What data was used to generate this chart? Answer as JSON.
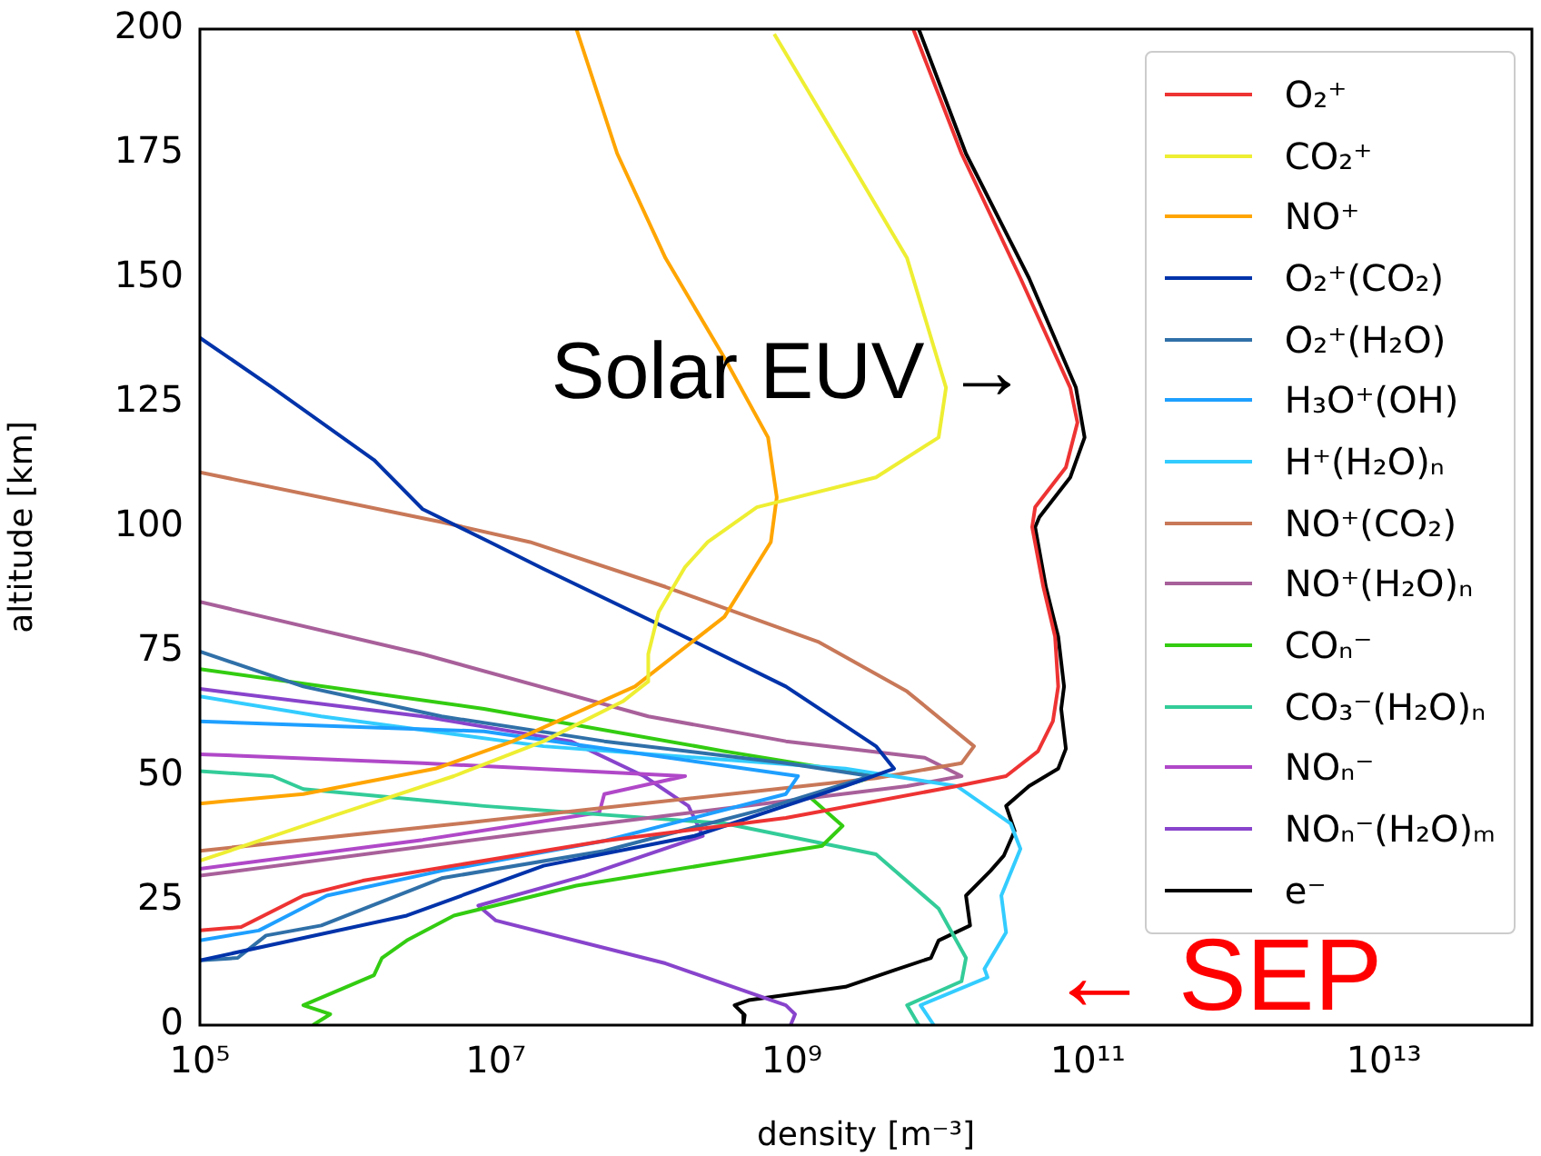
{
  "chart_data": {
    "type": "line",
    "xlabel": "density [m⁻³]",
    "ylabel": "altitude [km]",
    "log": "x",
    "xlim": [
      100000.0,
      100000000000000.0
    ],
    "xticks": [
      {
        "value": 100000.0,
        "label": "10⁵"
      },
      {
        "value": 10000000.0,
        "label": "10⁷"
      },
      {
        "value": 1000000000.0,
        "label": "10⁹"
      },
      {
        "value": 100000000000.0,
        "label": "10¹¹"
      },
      {
        "value": 10000000000000.0,
        "label": "10¹³"
      }
    ],
    "ylim": [
      0,
      200
    ],
    "yticks": [
      0,
      25,
      50,
      75,
      100,
      125,
      150,
      175,
      200
    ],
    "grid": false,
    "legend": "top right",
    "marker": "none",
    "line_style": "solid",
    "annotations": [
      "Solar EUV →",
      "← SEP"
    ],
    "series": [
      {
        "name": "O₂⁺",
        "color": "#ee3333",
        "x": [
          6600000000.0,
          14000000000.0,
          35000000000.0,
          76000000000.0,
          85000000000.0,
          71000000000.0,
          44000000000.0,
          42000000000.0,
          50000000000.0,
          60000000000.0,
          63000000000.0,
          58000000000.0,
          46000000000.0,
          28000000000.0,
          13000000000.0,
          910000000.0,
          54000000.0,
          1260000.0,
          500000.0,
          190000.0,
          100000.0
        ],
        "values": [
          200,
          175,
          150,
          128,
          121,
          112,
          104,
          100,
          88,
          78,
          68,
          61,
          55,
          50,
          48,
          41.6,
          37,
          29,
          26,
          19.7,
          19
        ]
      },
      {
        "name": "CO₂⁺",
        "color": "#eeee33",
        "x": [
          760000000.0,
          2300000000.0,
          6000000000.0,
          11000000000.0,
          9800000000.0,
          3700000000.0,
          580000000.0,
          270000000.0,
          190000000.0,
          126000000.0,
          107000000.0,
          107000000.0,
          72000000.0,
          21000000.0,
          5200000.0,
          790000.0,
          100000.0
        ],
        "values": [
          199,
          175,
          154,
          128,
          118,
          110,
          104,
          97,
          92,
          83,
          74.5,
          69,
          65,
          57,
          50,
          42,
          33
        ]
      },
      {
        "name": "NO⁺",
        "color": "#ffa500",
        "x": [
          35000000.0,
          66000000.0,
          140000000.0,
          350000000.0,
          690000000.0,
          790000000.0,
          720000000.0,
          350000000.0,
          87000000.0,
          13000000.0,
          3900000.0,
          500000.0,
          100000.0
        ],
        "values": [
          200,
          175,
          154,
          134,
          118,
          106,
          97,
          82,
          68,
          57,
          51.5,
          46.4,
          44.5
        ]
      },
      {
        "name": "O₂⁺(CO₂)",
        "color": "#0033aa",
        "x": [
          100000.0,
          310000.0,
          1500000.0,
          3200000.0,
          9100000.0,
          21000000.0,
          220000000.0,
          910000000.0,
          3700000000.0,
          4900000000.0,
          2300000000.0,
          220000000.0,
          21000000.0,
          2500000.0,
          100000.0
        ],
        "values": [
          138,
          128,
          113.5,
          103.6,
          97,
          91.6,
          77,
          68,
          56,
          51.5,
          48,
          38,
          32,
          22,
          13
        ]
      },
      {
        "name": "O₂⁺(H₂O)",
        "color": "#3070a8",
        "x": [
          100000.0,
          500000.0,
          4300000.0,
          54000000.0,
          910000000.0,
          3400000000.0,
          580000000.0,
          54000000.0,
          4300000.0,
          660000.0,
          280000.0,
          180000.0,
          100000.0
        ],
        "values": [
          75,
          68,
          62,
          57,
          52.6,
          50,
          43,
          35,
          29.5,
          20,
          18,
          13.5,
          13
        ]
      },
      {
        "name": "H₃O⁺(OH)",
        "color": "#1e9fff",
        "x": [
          100000.0,
          8300000.0,
          1100000000.0,
          910000000.0,
          54000000.0,
          4300000.0,
          720000.0,
          250000.0,
          100000.0
        ],
        "values": [
          61,
          59,
          50,
          46.4,
          37,
          31,
          26,
          19,
          17
        ]
      },
      {
        "name": "H⁺(H₂O)ₙ",
        "color": "#33ccff",
        "x": [
          100000.0,
          660000.0,
          21000000.0,
          2300000000.0,
          13000000000.0,
          30000000000.0,
          35000000000.0,
          26000000000.0,
          28000000000.0,
          20000000000.0,
          21000000000.0,
          7400000000.0,
          9100000000.0
        ],
        "values": [
          66,
          62,
          56,
          51.5,
          48,
          40.5,
          35.4,
          26,
          18.6,
          11.3,
          9.6,
          4,
          0
        ]
      },
      {
        "name": "NO⁺(CO₂)",
        "color": "#c87858",
        "x": [
          100000.0,
          4300000.0,
          17000000.0,
          140000000.0,
          1500000000.0,
          6000000000.0,
          17000000000.0,
          14000000000.0,
          3700000000.0,
          8300000.0,
          100000.0
        ],
        "values": [
          111,
          101,
          97,
          88,
          77,
          67,
          56,
          52.6,
          49.6,
          41,
          35
        ]
      },
      {
        "name": "NO⁺(H₂O)ₙ",
        "color": "#a8609a",
        "x": [
          100000.0,
          3200000.0,
          107000000.0,
          910000000.0,
          7900000000.0,
          14000000000.0,
          6000000000.0,
          21000000.0,
          100000.0
        ],
        "values": [
          85,
          74.5,
          62,
          57,
          53.7,
          50,
          48,
          39,
          30
        ]
      },
      {
        "name": "COₙ⁻",
        "color": "#33cc11",
        "x": [
          100000.0,
          8300000.0,
          350000000.0,
          3700000000.0,
          1300000000.0,
          2200000000.0,
          1600000000.0,
          35000000.0,
          5200000.0,
          2500000.0,
          1700000.0,
          1500000.0,
          500000.0,
          760000.0,
          580000.0
        ],
        "values": [
          71.5,
          63.5,
          55,
          50,
          46,
          40,
          36,
          28,
          22,
          17,
          13.5,
          10,
          4,
          2.2,
          0
        ]
      },
      {
        "name": "CO₃⁻(H₂O)ₙ",
        "color": "#33cc99",
        "x": [
          100000.0,
          310000.0,
          500000.0,
          8300000.0,
          350000000.0,
          3700000000.0,
          9800000000.0,
          15000000000.0,
          14000000000.0,
          6000000000.0,
          7200000000.0
        ],
        "values": [
          51,
          50,
          47.4,
          44,
          40.5,
          34.3,
          23.4,
          13.5,
          8.8,
          4,
          0
        ]
      },
      {
        "name": "NOₙ⁻",
        "color": "#b048c8",
        "x": [
          100000.0,
          3200000.0,
          190000000.0,
          54000000.0,
          50000000.0,
          3200000.0,
          100000.0
        ],
        "values": [
          54.4,
          52.6,
          50,
          46.4,
          42.7,
          37.2,
          31.4
        ]
      },
      {
        "name": "NOₙ⁻(H₂O)ₘ",
        "color": "#8844cc",
        "x": [
          100000.0,
          3200000.0,
          32000000.0,
          100000000.0,
          200000000.0,
          250000000.0,
          40000000.0,
          7600000.0,
          10000000.0,
          140000000.0,
          910000000.0,
          1050000000.0,
          980000000.0
        ],
        "values": [
          67.5,
          62,
          57,
          50,
          44,
          38,
          30,
          24,
          21,
          12.4,
          4,
          2.2,
          0
        ]
      },
      {
        "name": "e⁻",
        "color": "#000000",
        "x": [
          7200000000.0,
          15000000000.0,
          40000000000.0,
          83000000000.0,
          95000000000.0,
          76000000000.0,
          47000000000.0,
          44000000000.0,
          52000000000.0,
          63000000000.0,
          69000000000.0,
          66000000000.0,
          71000000000.0,
          63000000000.0,
          40000000000.0,
          28000000000.0,
          32000000000.0,
          27000000000.0,
          22000000000.0,
          15000000000.0,
          16000000000.0,
          9800000000.0,
          8700000000.0,
          4900000000.0,
          2300000000.0,
          510000000.0,
          410000000.0,
          480000000.0,
          470000000.0
        ],
        "values": [
          200,
          175,
          150,
          128,
          118,
          110,
          102,
          100,
          88,
          78,
          68,
          63.5,
          55.5,
          51.5,
          48,
          44,
          39,
          34,
          31,
          26,
          20,
          17,
          13.5,
          11,
          7.7,
          5,
          4,
          2,
          0
        ]
      }
    ]
  }
}
